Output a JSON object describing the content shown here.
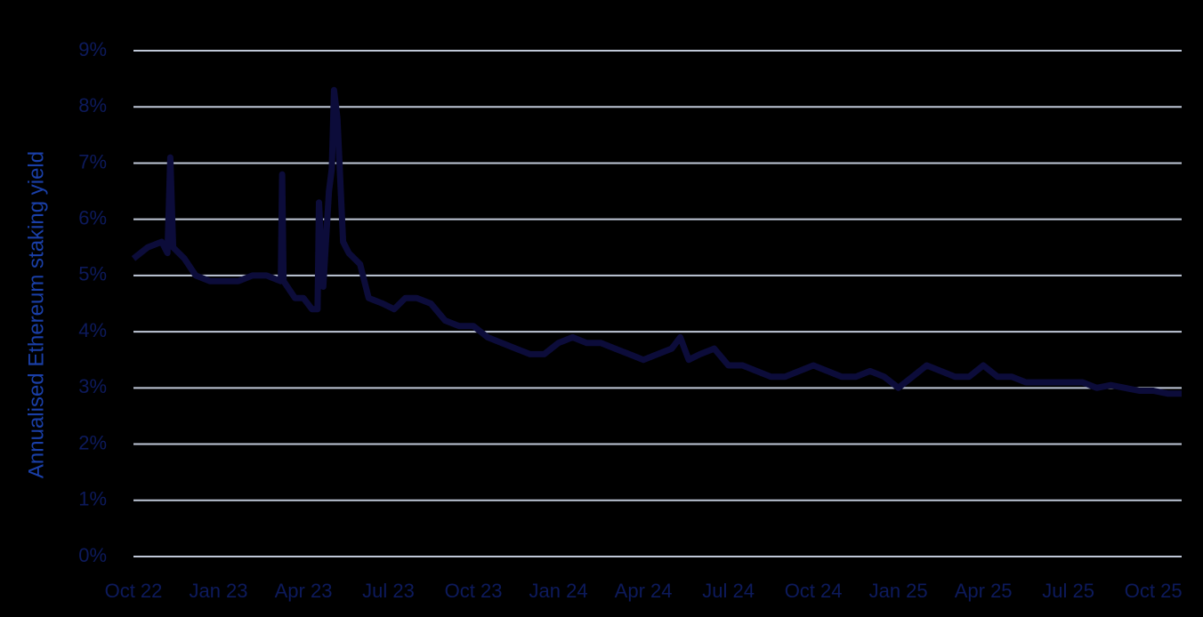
{
  "chart_data": {
    "type": "line",
    "y_label": "Annualised Ethereum staking yield",
    "grid": true,
    "background": "#000000",
    "grid_color": "#c0c8d8",
    "xlim": [
      0,
      37
    ],
    "xticks": [
      {
        "value": 0,
        "label": "Oct 22"
      },
      {
        "value": 3,
        "label": "Jan 23"
      },
      {
        "value": 6,
        "label": "Apr 23"
      },
      {
        "value": 9,
        "label": "Jul 23"
      },
      {
        "value": 12,
        "label": "Oct 23"
      },
      {
        "value": 15,
        "label": "Jan 24"
      },
      {
        "value": 18,
        "label": "Apr 24"
      },
      {
        "value": 21,
        "label": "Jul 24"
      },
      {
        "value": 24,
        "label": "Oct 24"
      },
      {
        "value": 27,
        "label": "Jan 25"
      },
      {
        "value": 30,
        "label": "Apr 25"
      },
      {
        "value": 33,
        "label": "Jul 25"
      },
      {
        "value": 36,
        "label": "Oct 25"
      }
    ],
    "ylim": [
      0,
      9
    ],
    "yticks": [
      {
        "value": 0,
        "label": "0%"
      },
      {
        "value": 1,
        "label": "1%"
      },
      {
        "value": 2,
        "label": "2%"
      },
      {
        "value": 3,
        "label": "3%"
      },
      {
        "value": 4,
        "label": "4%"
      },
      {
        "value": 5,
        "label": "5%"
      },
      {
        "value": 6,
        "label": "6%"
      },
      {
        "value": 7,
        "label": "7%"
      },
      {
        "value": 8,
        "label": "8%"
      },
      {
        "value": 9,
        "label": "9%"
      }
    ],
    "series": [
      {
        "color": "#0c0c3a",
        "x": [
          0,
          0.5,
          1.0,
          1.2,
          1.3,
          1.4,
          1.8,
          2.2,
          2.7,
          3.2,
          3.7,
          4.2,
          4.7,
          5.2,
          5.25,
          5.3,
          5.7,
          6.0,
          6.3,
          6.5,
          6.55,
          6.7,
          6.9,
          7.0,
          7.08,
          7.2,
          7.4,
          7.6,
          8.0,
          8.3,
          8.8,
          9.2,
          9.6,
          10,
          10.5,
          11,
          11.5,
          12,
          12.5,
          13,
          13.5,
          14,
          14.5,
          15,
          15.5,
          16,
          16.5,
          17,
          17.5,
          18,
          18.5,
          19,
          19.3,
          19.6,
          20,
          20.5,
          21,
          21.5,
          22,
          22.5,
          23,
          23.5,
          24,
          24.5,
          25,
          25.5,
          26,
          26.5,
          27,
          27.5,
          28,
          28.5,
          29,
          29.5,
          30,
          30.5,
          31,
          31.5,
          32,
          32.5,
          33,
          33.5,
          34,
          34.5,
          35,
          35.5,
          36,
          36.5,
          37
        ],
        "values": [
          5.3,
          5.5,
          5.6,
          5.4,
          7.1,
          5.5,
          5.3,
          5.0,
          4.9,
          4.9,
          4.9,
          5.0,
          5.0,
          4.9,
          6.8,
          4.9,
          4.6,
          4.6,
          4.4,
          4.4,
          6.3,
          4.8,
          6.5,
          6.9,
          8.3,
          7.8,
          5.6,
          5.4,
          5.2,
          4.6,
          4.5,
          4.4,
          4.6,
          4.6,
          4.5,
          4.2,
          4.1,
          4.1,
          3.9,
          3.8,
          3.7,
          3.6,
          3.6,
          3.8,
          3.9,
          3.8,
          3.8,
          3.7,
          3.6,
          3.5,
          3.6,
          3.7,
          3.9,
          3.5,
          3.6,
          3.7,
          3.4,
          3.4,
          3.3,
          3.2,
          3.2,
          3.3,
          3.4,
          3.3,
          3.2,
          3.2,
          3.3,
          3.2,
          3.0,
          3.2,
          3.4,
          3.3,
          3.2,
          3.2,
          3.4,
          3.2,
          3.2,
          3.1,
          3.1,
          3.1,
          3.1,
          3.1,
          3.0,
          3.05,
          3.0,
          2.95,
          2.95,
          2.9,
          2.9
        ]
      }
    ]
  }
}
